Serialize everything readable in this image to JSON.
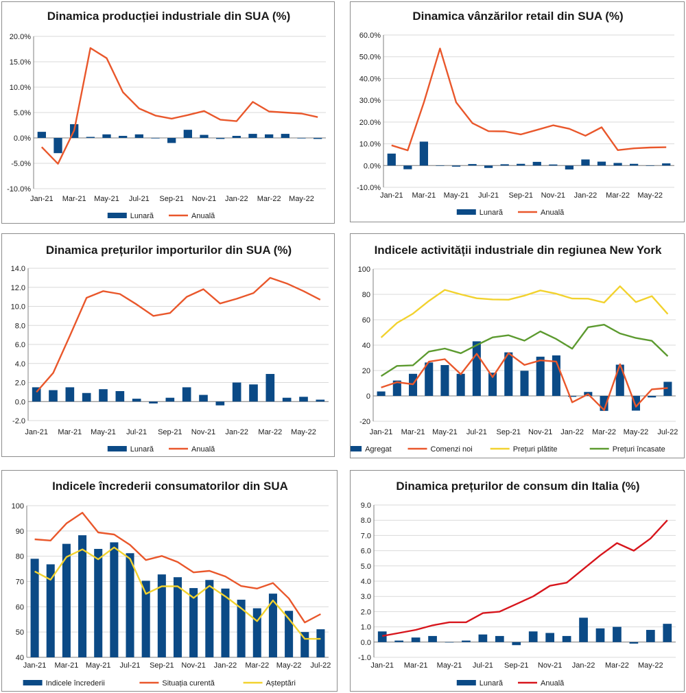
{
  "colors": {
    "bar": "#0b4a86",
    "orange": "#e9572b",
    "yellow": "#f2d22e",
    "green": "#5c9a2f",
    "red": "#d7151c",
    "grid": "#d9d9d9",
    "axis": "#7f7f7f"
  },
  "chart_data": [
    {
      "id": "c1",
      "type": "bar+line",
      "title": "Dinamica producției industriale din SUA (%)",
      "ylim": [
        -10,
        20
      ],
      "ystep": 5,
      "ydecimals": 1,
      "ypercent": true,
      "categories": [
        "Jan-21",
        "Feb-21",
        "Mar-21",
        "Apr-21",
        "May-21",
        "Jun-21",
        "Jul-21",
        "Aug-21",
        "Sep-21",
        "Oct-21",
        "Nov-21",
        "Dec-21",
        "Jan-22",
        "Feb-22",
        "Mar-22",
        "Apr-22",
        "May-22",
        "Jun-22"
      ],
      "xtick_labels": [
        "Jan-21",
        "Mar-21",
        "May-21",
        "Jul-21",
        "Sep-21",
        "Nov-21",
        "Jan-22",
        "Mar-22",
        "May-22"
      ],
      "series": [
        {
          "name": "Lunară",
          "kind": "bar",
          "color": "#0b4a86",
          "values": [
            1.2,
            -3.0,
            2.7,
            0.2,
            0.7,
            0.4,
            0.7,
            -0.1,
            -1.0,
            1.6,
            0.6,
            -0.2,
            0.4,
            0.8,
            0.7,
            0.8,
            -0.1,
            -0.2
          ]
        },
        {
          "name": "Anuală",
          "kind": "line",
          "color": "#e9572b",
          "values": [
            -1.8,
            -5.1,
            1.5,
            17.7,
            15.7,
            9.0,
            5.8,
            4.4,
            3.8,
            4.5,
            5.3,
            3.6,
            3.3,
            7.1,
            5.2,
            5.0,
            4.8,
            4.1
          ]
        }
      ]
    },
    {
      "id": "c2",
      "type": "bar+line",
      "title": "Dinamica vânzărilor retail din SUA (%)",
      "ylim": [
        -10,
        60
      ],
      "ystep": 10,
      "ydecimals": 1,
      "ypercent": true,
      "categories": [
        "Jan-21",
        "Feb-21",
        "Mar-21",
        "Apr-21",
        "May-21",
        "Jun-21",
        "Jul-21",
        "Aug-21",
        "Sep-21",
        "Oct-21",
        "Nov-21",
        "Dec-21",
        "Jan-22",
        "Feb-22",
        "Mar-22",
        "Apr-22",
        "May-22",
        "Jun-22"
      ],
      "xtick_labels": [
        "Jan-21",
        "Mar-21",
        "May-21",
        "Jul-21",
        "Sep-21",
        "Nov-21",
        "Jan-22",
        "Mar-22",
        "May-22"
      ],
      "series": [
        {
          "name": "Lunară",
          "kind": "bar",
          "color": "#0b4a86",
          "values": [
            5.5,
            -1.7,
            11.0,
            0.0,
            -0.5,
            0.7,
            -1.1,
            0.6,
            0.8,
            1.7,
            0.5,
            -1.8,
            2.8,
            1.8,
            1.2,
            0.8,
            -0.1,
            1.0
          ]
        },
        {
          "name": "Anuală",
          "kind": "line",
          "color": "#e9572b",
          "values": [
            9.3,
            7.0,
            29.0,
            53.8,
            29.0,
            19.5,
            15.8,
            15.7,
            14.3,
            16.4,
            18.5,
            16.9,
            13.7,
            17.6,
            7.1,
            7.9,
            8.3,
            8.4
          ]
        }
      ]
    },
    {
      "id": "c3",
      "type": "bar+line",
      "title": "Dinamica prețurilor importurilor din SUA (%)",
      "ylim": [
        -2,
        14
      ],
      "ystep": 2,
      "ydecimals": 1,
      "ypercent": false,
      "categories": [
        "Jan-21",
        "Feb-21",
        "Mar-21",
        "Apr-21",
        "May-21",
        "Jun-21",
        "Jul-21",
        "Aug-21",
        "Sep-21",
        "Oct-21",
        "Nov-21",
        "Dec-21",
        "Jan-22",
        "Feb-22",
        "Mar-22",
        "Apr-22",
        "May-22",
        "Jun-22"
      ],
      "xtick_labels": [
        "Jan-21",
        "Mar-21",
        "May-21",
        "Jul-21",
        "Sep-21",
        "Nov-21",
        "Jan-22",
        "Mar-22",
        "May-22"
      ],
      "series": [
        {
          "name": "Lunară",
          "kind": "bar",
          "color": "#0b4a86",
          "values": [
            1.5,
            1.2,
            1.5,
            0.9,
            1.3,
            1.1,
            0.3,
            -0.2,
            0.4,
            1.5,
            0.7,
            -0.4,
            2.0,
            1.8,
            2.9,
            0.4,
            0.5,
            0.2
          ]
        },
        {
          "name": "Anuală",
          "kind": "line",
          "color": "#e9572b",
          "values": [
            1.0,
            3.0,
            6.9,
            10.9,
            11.6,
            11.3,
            10.2,
            9.0,
            9.3,
            11.0,
            11.8,
            10.3,
            10.8,
            11.4,
            13.0,
            12.4,
            11.6,
            10.7
          ]
        }
      ]
    },
    {
      "id": "c4",
      "type": "bar+line",
      "title": "Indicele activității industriale din regiunea New York",
      "ylim": [
        -20,
        100
      ],
      "ystep": 20,
      "ydecimals": 0,
      "ypercent": false,
      "categories": [
        "Jan-21",
        "Feb-21",
        "Mar-21",
        "Apr-21",
        "May-21",
        "Jun-21",
        "Jul-21",
        "Aug-21",
        "Sep-21",
        "Oct-21",
        "Nov-21",
        "Dec-21",
        "Jan-22",
        "Feb-22",
        "Mar-22",
        "Apr-22",
        "May-22",
        "Jun-22",
        "Jul-22"
      ],
      "xtick_labels": [
        "Jan-21",
        "Mar-21",
        "May-21",
        "Jul-21",
        "Sep-21",
        "Nov-21",
        "Jan-22",
        "Mar-22",
        "May-22",
        "Jul-22"
      ],
      "series": [
        {
          "name": "Agregat",
          "kind": "bar",
          "color": "#0b4a86",
          "values": [
            3.5,
            12.1,
            17.4,
            26.3,
            24.3,
            17.4,
            43.0,
            18.3,
            34.3,
            19.8,
            30.9,
            31.9,
            -0.7,
            3.1,
            -11.8,
            24.6,
            -11.6,
            -1.2,
            11.1
          ]
        },
        {
          "name": "Comenzi noi",
          "kind": "line",
          "color": "#e9572b",
          "values": [
            6.6,
            10.8,
            9.2,
            27.0,
            28.9,
            17.1,
            33.2,
            14.8,
            33.7,
            24.4,
            28.0,
            27.1,
            -5.0,
            1.4,
            -11.2,
            25.0,
            -8.5,
            5.2,
            6.2
          ]
        },
        {
          "name": "Prețuri plătite",
          "kind": "line",
          "color": "#f2d22e",
          "values": [
            46.0,
            57.5,
            64.8,
            74.8,
            83.5,
            80.0,
            76.9,
            76.0,
            75.8,
            79.0,
            83.1,
            80.5,
            76.7,
            76.6,
            73.5,
            86.4,
            73.9,
            78.6,
            64.5
          ]
        },
        {
          "name": "Prețuri încasate",
          "kind": "line",
          "color": "#5c9a2f",
          "values": [
            15.6,
            23.6,
            24.1,
            34.9,
            37.3,
            33.6,
            40.0,
            46.1,
            47.8,
            43.5,
            50.8,
            44.8,
            37.2,
            54.1,
            56.1,
            49.2,
            45.6,
            43.4,
            31.3
          ]
        }
      ]
    },
    {
      "id": "c5",
      "type": "bar+line",
      "title": "Indicele încrederii consumatorilor din SUA",
      "ylim": [
        40,
        100
      ],
      "ystep": 10,
      "ydecimals": 0,
      "ypercent": false,
      "categories": [
        "Jan-21",
        "Feb-21",
        "Mar-21",
        "Apr-21",
        "May-21",
        "Jun-21",
        "Jul-21",
        "Aug-21",
        "Sep-21",
        "Oct-21",
        "Nov-21",
        "Dec-21",
        "Jan-22",
        "Feb-22",
        "Mar-22",
        "Apr-22",
        "May-22",
        "Jun-22",
        "Jul-22"
      ],
      "xtick_labels": [
        "Jan-21",
        "Mar-21",
        "May-21",
        "Jul-21",
        "Sep-21",
        "Nov-21",
        "Jan-22",
        "Mar-22",
        "May-22",
        "Jul-22"
      ],
      "series": [
        {
          "name": "Indicele încrederii",
          "kind": "bar",
          "color": "#0b4a86",
          "values": [
            79.0,
            76.8,
            84.9,
            88.3,
            82.9,
            85.5,
            81.2,
            70.3,
            72.8,
            71.7,
            67.4,
            70.6,
            67.2,
            62.8,
            59.4,
            65.2,
            58.4,
            50.0,
            51.1
          ]
        },
        {
          "name": "Situația curentă",
          "kind": "line",
          "color": "#e9572b",
          "values": [
            86.7,
            86.2,
            93.0,
            97.2,
            89.4,
            88.6,
            84.5,
            78.5,
            80.1,
            77.7,
            73.6,
            74.2,
            72.0,
            68.2,
            67.2,
            69.4,
            63.3,
            53.8,
            57.1
          ]
        },
        {
          "name": "Așteptări",
          "kind": "line",
          "color": "#f2d22e",
          "values": [
            74.0,
            70.7,
            79.7,
            82.7,
            78.8,
            83.5,
            79.0,
            65.1,
            68.1,
            68.1,
            63.5,
            68.3,
            64.1,
            59.4,
            54.3,
            62.5,
            55.2,
            47.3,
            47.3
          ]
        }
      ]
    },
    {
      "id": "c6",
      "type": "bar+line",
      "title": "Dinamica prețurilor de consum din Italia (%)",
      "ylim": [
        -1,
        9
      ],
      "ystep": 1,
      "ydecimals": 1,
      "ypercent": false,
      "categories": [
        "Jan-21",
        "Feb-21",
        "Mar-21",
        "Apr-21",
        "May-21",
        "Jun-21",
        "Jul-21",
        "Aug-21",
        "Sep-21",
        "Oct-21",
        "Nov-21",
        "Dec-21",
        "Jan-22",
        "Feb-22",
        "Mar-22",
        "Apr-22",
        "May-22",
        "Jun-22"
      ],
      "xtick_labels": [
        "Jan-21",
        "Mar-21",
        "May-21",
        "Jul-21",
        "Sep-21",
        "Nov-21",
        "Jan-22",
        "Mar-22",
        "May-22"
      ],
      "series": [
        {
          "name": "Lunară",
          "kind": "bar",
          "color": "#0b4a86",
          "values": [
            0.7,
            0.1,
            0.3,
            0.4,
            0.0,
            0.1,
            0.5,
            0.4,
            -0.2,
            0.7,
            0.6,
            0.4,
            1.6,
            0.9,
            1.0,
            -0.1,
            0.8,
            1.2
          ]
        },
        {
          "name": "Anuală",
          "kind": "line",
          "color": "#d7151c",
          "values": [
            0.4,
            0.6,
            0.8,
            1.1,
            1.3,
            1.3,
            1.9,
            2.0,
            2.5,
            3.0,
            3.7,
            3.9,
            4.8,
            5.7,
            6.5,
            6.0,
            6.8,
            8.0
          ]
        }
      ]
    }
  ]
}
